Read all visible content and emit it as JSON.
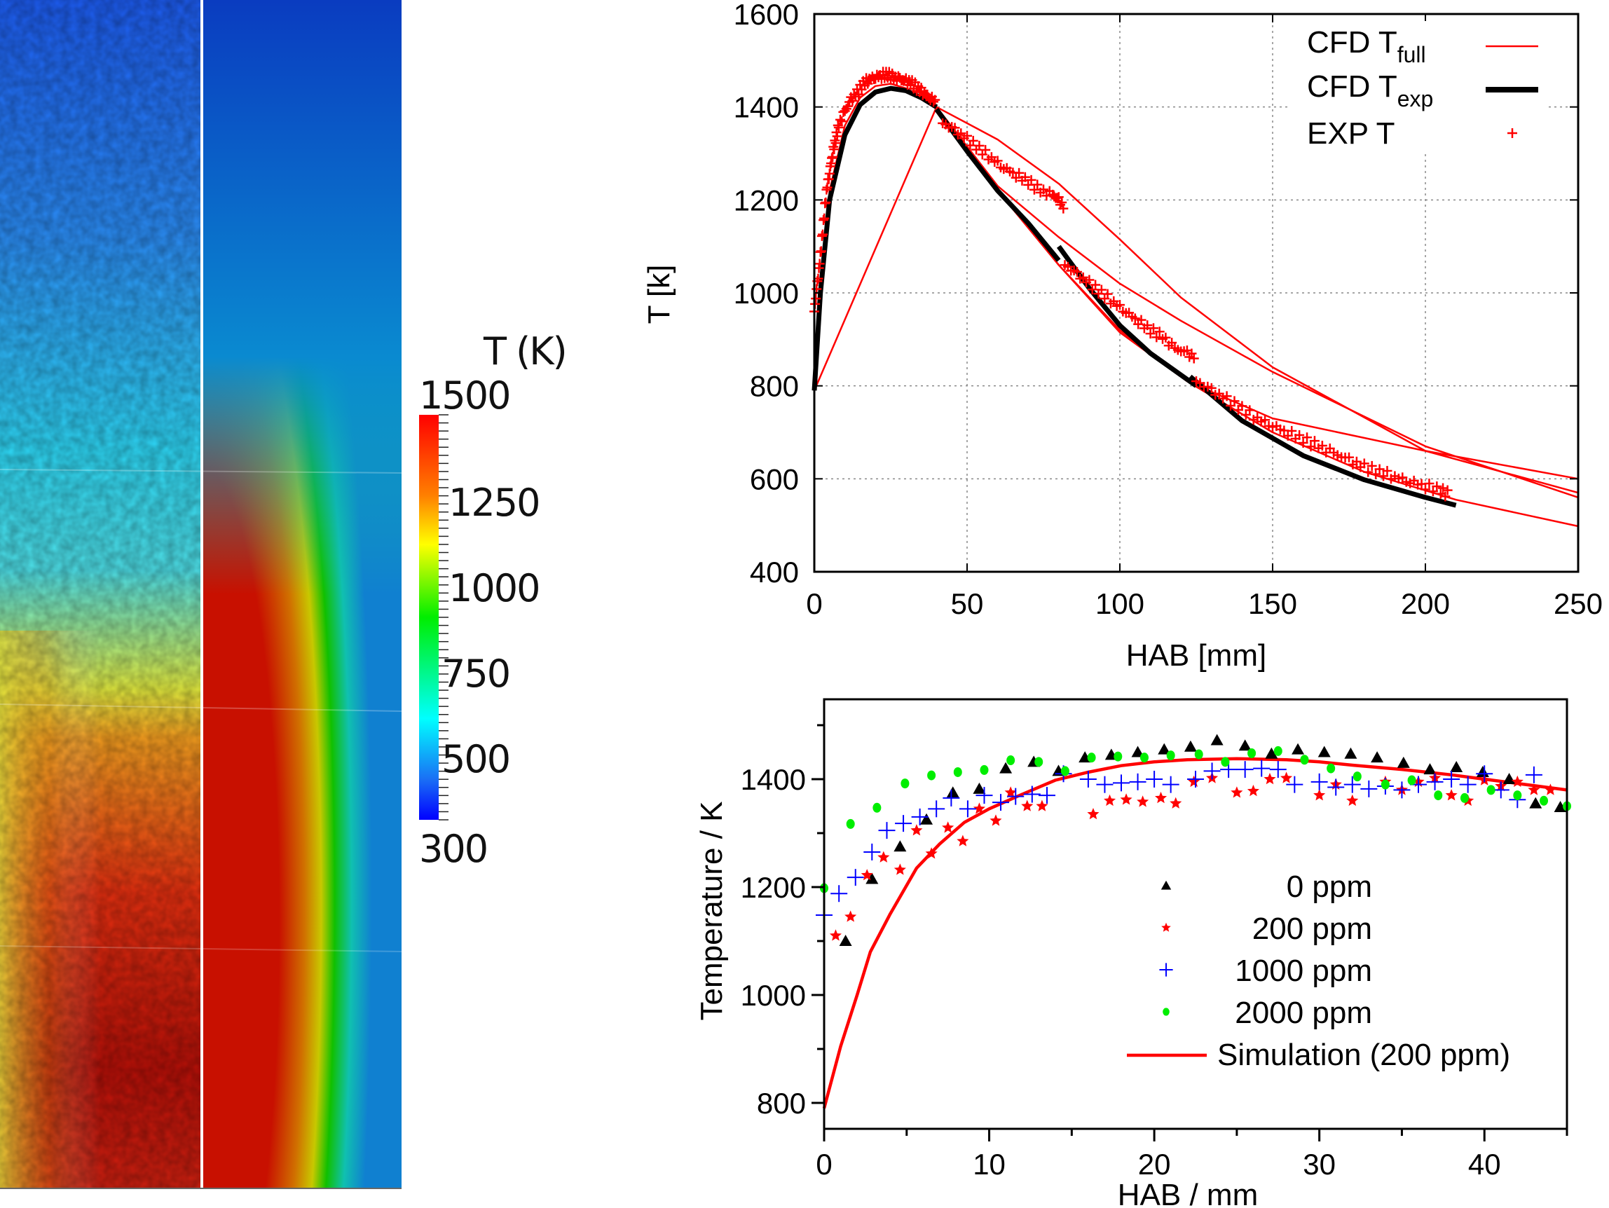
{
  "field_panel": {
    "description": "Temperature field: experimental (left half) vs simulation (right half)",
    "colorbar": {
      "title": "T (K)",
      "min": 300,
      "max": 1500,
      "tick_labels": [
        "1500",
        "1250",
        "1000",
        "750",
        "500",
        "300"
      ],
      "colors": [
        "#ff0000",
        "#ff8000",
        "#ffff00",
        "#00ff00",
        "#00ffff",
        "#0000ff"
      ]
    }
  },
  "chart_data": [
    {
      "type": "line",
      "title": "",
      "xlabel": "HAB [mm]",
      "ylabel": "T [k]",
      "xlim": [
        0,
        250
      ],
      "ylim": [
        400,
        1600
      ],
      "xticks": [
        "0",
        "50",
        "100",
        "150",
        "200",
        "250"
      ],
      "yticks": [
        "400",
        "600",
        "800",
        "1000",
        "1200",
        "1400",
        "1600"
      ],
      "grid": true,
      "legend_position": "top-right",
      "legend": [
        {
          "label": "CFD T",
          "sub": "full",
          "style": "thin red line",
          "color": "#ff0000"
        },
        {
          "label": "CFD T",
          "sub": "exp",
          "style": "thick black line",
          "color": "#000000"
        },
        {
          "label": "EXP T",
          "sub": "",
          "style": "red plus marker",
          "color": "#ff0000"
        }
      ],
      "series": [
        {
          "name": "CFD T_exp segment 1",
          "color": "#000000",
          "x": [
            0,
            2,
            5,
            10,
            15,
            20,
            25,
            30,
            35,
            40
          ],
          "y": [
            790,
            1000,
            1200,
            1340,
            1405,
            1432,
            1440,
            1435,
            1420,
            1400
          ]
        },
        {
          "name": "CFD T_exp segment 2",
          "color": "#000000",
          "x": [
            40,
            50,
            60,
            70,
            80
          ],
          "y": [
            1395,
            1305,
            1220,
            1150,
            1070
          ]
        },
        {
          "name": "CFD T_exp segment 3",
          "color": "#000000",
          "x": [
            80,
            90,
            100,
            110,
            125
          ],
          "y": [
            1100,
            1010,
            930,
            870,
            800
          ]
        },
        {
          "name": "CFD T_exp segment 4",
          "color": "#000000",
          "x": [
            123,
            140,
            160,
            180,
            200,
            210
          ],
          "y": [
            820,
            725,
            650,
            598,
            560,
            543
          ]
        },
        {
          "name": "CFD T_full run 1",
          "color": "#ff0000",
          "x": [
            0,
            2,
            5,
            10,
            15,
            20,
            25,
            30,
            35,
            40,
            60,
            80,
            100,
            120,
            150,
            200,
            250
          ],
          "y": [
            790,
            1010,
            1220,
            1360,
            1420,
            1445,
            1450,
            1440,
            1420,
            1400,
            1330,
            1235,
            1115,
            990,
            840,
            660,
            570
          ]
        },
        {
          "name": "CFD T_full run 2",
          "color": "#ff0000",
          "x": [
            40,
            60,
            80,
            100,
            120,
            150,
            200,
            250
          ],
          "y": [
            1400,
            1230,
            1120,
            1020,
            940,
            830,
            670,
            560
          ]
        },
        {
          "name": "CFD T_full run 3",
          "color": "#ff0000",
          "x": [
            40,
            60,
            80,
            100,
            122,
            150,
            200,
            250
          ],
          "y": [
            1400,
            1225,
            1060,
            920,
            810,
            730,
            660,
            600
          ]
        },
        {
          "name": "CFD T_full run 4",
          "color": "#ff0000",
          "x": [
            0,
            40,
            60,
            80,
            100,
            122,
            150,
            180,
            210,
            250
          ],
          "y": [
            790,
            1400,
            1220,
            1060,
            915,
            810,
            700,
            615,
            555,
            498
          ]
        }
      ],
      "exp_points": {
        "name": "EXP T",
        "color": "#ff0000",
        "segments": [
          {
            "x": [
              0,
              1,
              2,
              3,
              4,
              5,
              6,
              7,
              8,
              10,
              12,
              14,
              16,
              18,
              20,
              22,
              24,
              26,
              28,
              30,
              32,
              34,
              36,
              38,
              40
            ],
            "y": [
              960,
              1020,
              1080,
              1150,
              1220,
              1260,
              1300,
              1330,
              1360,
              1390,
              1415,
              1430,
              1450,
              1460,
              1465,
              1468,
              1470,
              1462,
              1460,
              1455,
              1450,
              1440,
              1430,
              1420,
              1410
            ]
          },
          {
            "x": [
              42,
              46,
              50,
              54,
              58,
              62,
              66,
              70,
              74,
              78,
              80,
              82
            ],
            "y": [
              1365,
              1350,
              1330,
              1310,
              1290,
              1270,
              1255,
              1240,
              1220,
              1210,
              1200,
              1180
            ]
          },
          {
            "x": [
              82,
              86,
              90,
              94,
              98,
              102,
              106,
              110,
              114,
              118,
              122,
              125
            ],
            "y": [
              1060,
              1040,
              1020,
              1000,
              980,
              960,
              940,
              920,
              905,
              880,
              870,
              860
            ]
          },
          {
            "x": [
              125,
              130,
              135,
              140,
              145,
              150,
              155,
              160,
              165,
              170,
              175,
              180,
              185,
              190,
              195,
              200,
              205,
              208
            ],
            "y": [
              810,
              790,
              770,
              750,
              730,
              715,
              700,
              685,
              670,
              655,
              640,
              625,
              615,
              605,
              595,
              585,
              575,
              565
            ]
          }
        ]
      }
    },
    {
      "type": "scatter",
      "title": "",
      "xlabel": "HAB / mm",
      "ylabel": "Temperature / K",
      "xlim": [
        0,
        45
      ],
      "ylim": [
        752,
        1548
      ],
      "xticks": [
        "0",
        "10",
        "20",
        "30",
        "40"
      ],
      "yticks": [
        "800",
        "1000",
        "1200",
        "1400"
      ],
      "grid": false,
      "legend_position": "bottom-right",
      "series": [
        {
          "name": "0 ppm",
          "marker": "triangle",
          "color": "#000000",
          "x": [
            1.3,
            2.9,
            4.6,
            6.2,
            7.8,
            9.4,
            11,
            12.7,
            14.2,
            15.8,
            17.4,
            19,
            20.6,
            22.2,
            23.8,
            25.5,
            27.1,
            28.7,
            30.3,
            31.9,
            33.5,
            35.1,
            36.7,
            38.3,
            39.9,
            41.5,
            43.1,
            44.6
          ],
          "y": [
            1100,
            1215,
            1275,
            1325,
            1375,
            1382,
            1420,
            1432,
            1415,
            1440,
            1445,
            1450,
            1455,
            1460,
            1472,
            1462,
            1447,
            1455,
            1450,
            1447,
            1440,
            1430,
            1418,
            1422,
            1413,
            1400,
            1355,
            1348
          ]
        },
        {
          "name": "200 ppm",
          "marker": "star",
          "color": "#ff0000",
          "x": [
            0.7,
            1.6,
            2.6,
            3.6,
            4.6,
            5.6,
            6.5,
            7.5,
            8.4,
            9.4,
            10.4,
            11.3,
            12.3,
            13.2,
            16.3,
            17.3,
            18.3,
            19.3,
            20.4,
            21.3,
            22.4,
            23.5,
            25,
            26,
            27,
            28,
            30,
            31,
            32,
            34,
            35,
            36,
            37,
            38,
            39,
            40,
            41,
            42,
            43,
            44
          ],
          "y": [
            1110,
            1145,
            1222,
            1255,
            1232,
            1305,
            1262,
            1310,
            1285,
            1345,
            1323,
            1375,
            1350,
            1350,
            1335,
            1360,
            1362,
            1358,
            1365,
            1355,
            1395,
            1402,
            1375,
            1378,
            1400,
            1402,
            1370,
            1390,
            1360,
            1395,
            1380,
            1395,
            1402,
            1370,
            1360,
            1398,
            1387,
            1395,
            1380,
            1380
          ]
        },
        {
          "name": "1000 ppm",
          "marker": "plus",
          "color": "#0000ff",
          "x": [
            0,
            0.9,
            1.9,
            2.9,
            3.8,
            4.8,
            5.8,
            6.8,
            7.7,
            8.7,
            9.7,
            10.7,
            11.6,
            12.6,
            13.5,
            14.5,
            16,
            17,
            18,
            19,
            20,
            21,
            22.5,
            23.5,
            24.5,
            25.5,
            26.5,
            27.5,
            28.5,
            30,
            31,
            32,
            33,
            34,
            35,
            36,
            37,
            38,
            39,
            40,
            41,
            42,
            43
          ],
          "y": [
            1148,
            1188,
            1218,
            1265,
            1305,
            1318,
            1330,
            1345,
            1365,
            1345,
            1370,
            1357,
            1368,
            1372,
            1370,
            1410,
            1400,
            1390,
            1393,
            1395,
            1400,
            1390,
            1400,
            1415,
            1418,
            1418,
            1420,
            1418,
            1390,
            1395,
            1385,
            1390,
            1382,
            1387,
            1380,
            1390,
            1395,
            1400,
            1390,
            1410,
            1380,
            1362,
            1408
          ]
        },
        {
          "name": "2000 ppm",
          "marker": "circle",
          "color": "#00ee00",
          "x": [
            0,
            1.6,
            3.2,
            4.9,
            6.5,
            8.1,
            9.7,
            11.3,
            13,
            14.6,
            16.2,
            17.8,
            19.4,
            21,
            22.7,
            24.3,
            25.9,
            27.5,
            29.1,
            30.7,
            32.3,
            34,
            35.6,
            37.2,
            38.8,
            40.4,
            42,
            43.6,
            45
          ],
          "y": [
            1198,
            1317,
            1347,
            1392,
            1407,
            1413,
            1417,
            1435,
            1432,
            1415,
            1440,
            1442,
            1440,
            1444,
            1446,
            1432,
            1448,
            1452,
            1436,
            1420,
            1405,
            1390,
            1398,
            1370,
            1365,
            1380,
            1370,
            1360,
            1350
          ]
        },
        {
          "name": "Simulation (200 ppm)",
          "marker": "line",
          "color": "#ff0000",
          "x": [
            0,
            1,
            2,
            2.8,
            4,
            5.6,
            7,
            8.5,
            10,
            12,
            14,
            16,
            18,
            20,
            22,
            25,
            28,
            30,
            32,
            35,
            38,
            40,
            42,
            45
          ],
          "y": [
            790,
            905,
            1000,
            1080,
            1150,
            1235,
            1280,
            1320,
            1345,
            1372,
            1398,
            1413,
            1425,
            1432,
            1436,
            1438,
            1436,
            1432,
            1426,
            1418,
            1408,
            1400,
            1392,
            1380
          ]
        }
      ]
    }
  ]
}
